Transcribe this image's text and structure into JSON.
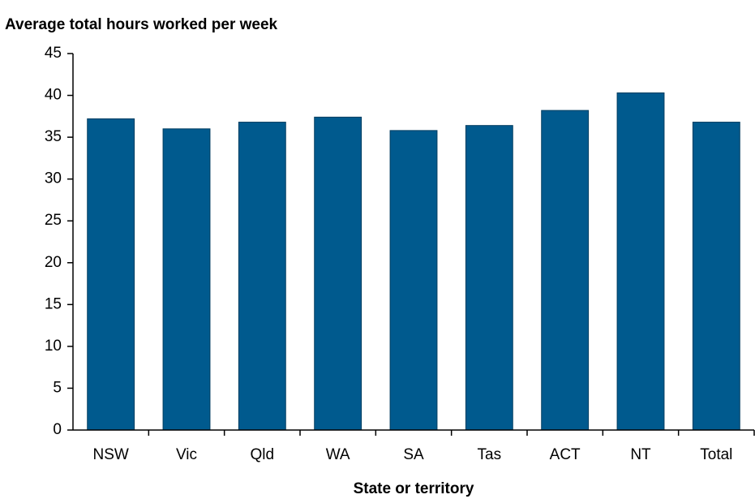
{
  "chart_data": {
    "type": "bar",
    "title": "Average total hours worked per week",
    "x_label": "State or territory",
    "categories": [
      "NSW",
      "Vic",
      "Qld",
      "WA",
      "SA",
      "Tas",
      "ACT",
      "NT",
      "Total"
    ],
    "values": [
      37.2,
      36.0,
      36.8,
      37.4,
      35.8,
      36.4,
      38.2,
      40.3,
      36.8
    ],
    "color": "#005a8e",
    "ylim": [
      0,
      45
    ],
    "yticks": [
      0,
      5,
      10,
      15,
      20,
      25,
      30,
      35,
      40,
      45
    ],
    "grid": false
  }
}
